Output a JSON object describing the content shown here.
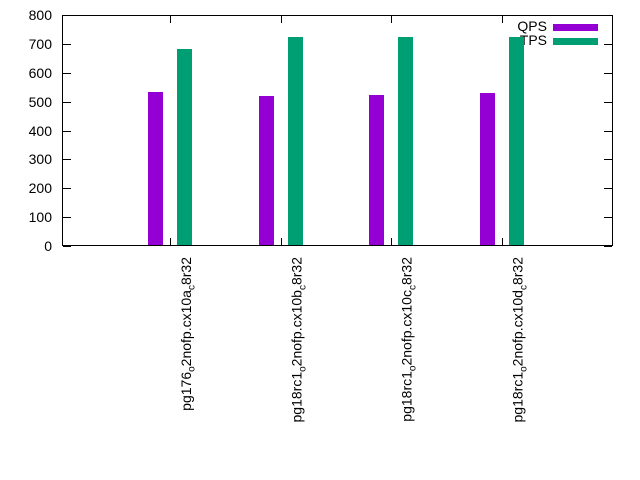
{
  "chart_data": {
    "type": "bar",
    "title": "",
    "xlabel": "",
    "ylabel": "",
    "categories_raw": [
      "pg176_o2nofp.cx10a_c8r32",
      "pg18rc1_o2nofp.cx10b_c8r32",
      "pg18rc1_o2nofp.cx10c_c8r32",
      "pg18rc1_o2nofp.cx10d_c8r32"
    ],
    "categories_segments": [
      [
        {
          "t": "pg176"
        },
        {
          "sub": "o"
        },
        {
          "t": "2nofp.cx10a"
        },
        {
          "sub": "c"
        },
        {
          "t": "8r32"
        }
      ],
      [
        {
          "t": "pg18rc1"
        },
        {
          "sub": "o"
        },
        {
          "t": "2nofp.cx10b"
        },
        {
          "sub": "c"
        },
        {
          "t": "8r32"
        }
      ],
      [
        {
          "t": "pg18rc1"
        },
        {
          "sub": "o"
        },
        {
          "t": "2nofp.cx10c"
        },
        {
          "sub": "c"
        },
        {
          "t": "8r32"
        }
      ],
      [
        {
          "t": "pg18rc1"
        },
        {
          "sub": "o"
        },
        {
          "t": "2nofp.cx10d"
        },
        {
          "sub": "c"
        },
        {
          "t": "8r32"
        }
      ]
    ],
    "series": [
      {
        "name": "QPS",
        "color": "#9400d3",
        "values": [
          533,
          520,
          523,
          530
        ]
      },
      {
        "name": "TPS",
        "color": "#009e73",
        "values": [
          682,
          723,
          723,
          725
        ]
      }
    ],
    "ylim": [
      0,
      800
    ],
    "ytick_step": 100,
    "ytick_labels": [
      "0",
      "100",
      "200",
      "300",
      "400",
      "500",
      "600",
      "700",
      "800"
    ],
    "grid": false,
    "legend_position": "top-right",
    "x_labels_rotation_deg": 90,
    "colors": {
      "background": "#ffffff",
      "axis": "#000000",
      "text": "#000000"
    }
  }
}
